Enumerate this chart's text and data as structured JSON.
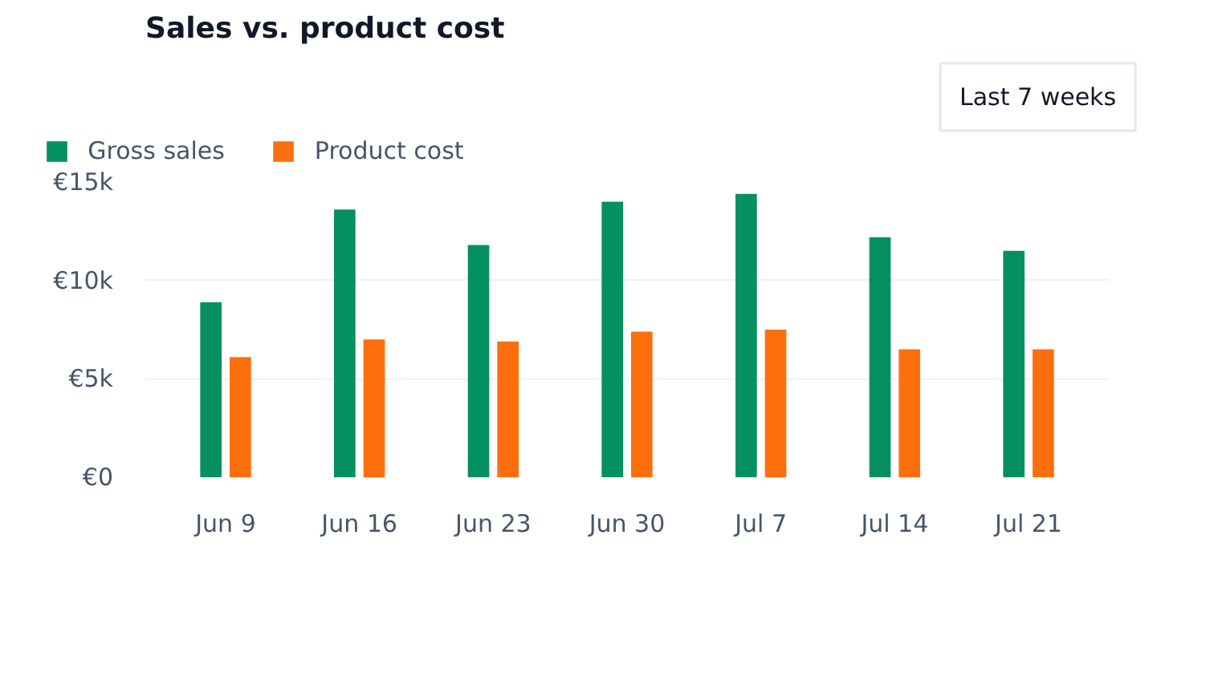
{
  "chart_data": {
    "type": "bar",
    "title": "Sales vs. product cost",
    "categories": [
      "Jun 9",
      "Jun 16",
      "Jun 23",
      "Jun 30",
      "Jul 7",
      "Jul 14",
      "Jul 21"
    ],
    "series": [
      {
        "name": "Gross sales",
        "color": "#05915f",
        "values": [
          8900,
          13600,
          11800,
          14000,
          14400,
          12200,
          11500
        ]
      },
      {
        "name": "Product cost",
        "color": "#fd6f0c",
        "values": [
          6100,
          7000,
          6900,
          7400,
          7500,
          6500,
          6500
        ]
      }
    ],
    "ylim": [
      0,
      15000
    ],
    "yticks": [
      {
        "value": 0,
        "label": "€0"
      },
      {
        "value": 5000,
        "label": "€5k"
      },
      {
        "value": 10000,
        "label": "€10k"
      },
      {
        "value": 15000,
        "label": "€15k"
      }
    ],
    "grid": "y",
    "legend": "top left",
    "annotations": [
      "Last 7 weeks"
    ]
  }
}
